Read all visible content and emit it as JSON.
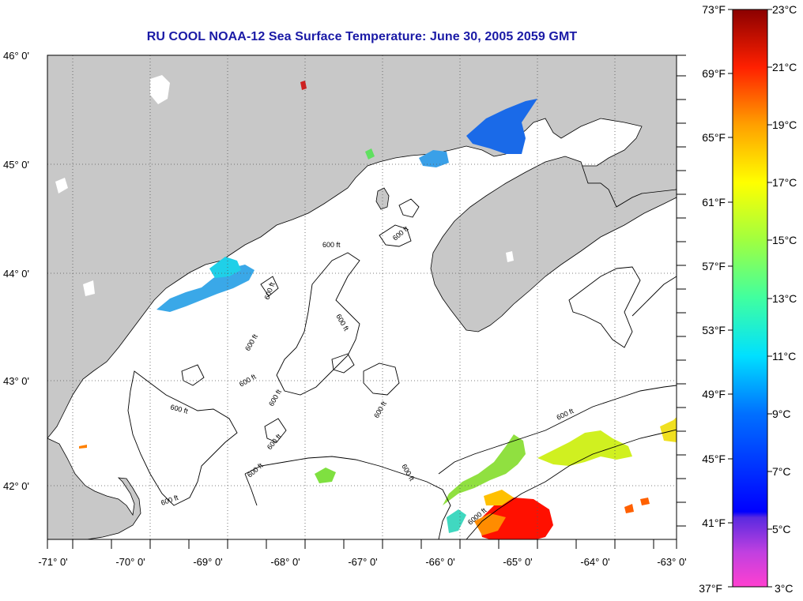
{
  "title": "RU COOL  NOAA-12  Sea Surface Temperature:  June 30, 2005 2059 GMT",
  "lat_labels": [
    "46° 0'",
    "45° 0'",
    "44° 0'",
    "43° 0'",
    "42° 0'"
  ],
  "lon_labels": [
    "-71° 0'",
    "-70° 0'",
    "-69° 0'",
    "-68° 0'",
    "-67° 0'",
    "-66° 0'",
    "-65° 0'",
    "-64° 0'",
    "-63° 0'"
  ],
  "colorbar": {
    "fahrenheit": [
      "73°F",
      "69°F",
      "65°F",
      "61°F",
      "57°F",
      "53°F",
      "49°F",
      "45°F",
      "41°F",
      "37°F"
    ],
    "celsius": [
      "23°C",
      "21°C",
      "19°C",
      "17°C",
      "15°C",
      "13°C",
      "11°C",
      "9°C",
      "7°C",
      "5°C",
      "3°C"
    ],
    "colors": [
      "#8b0000",
      "#ff0000",
      "#ff8c00",
      "#ffff00",
      "#7fff00",
      "#00ffff",
      "#0080ff",
      "#0000ff",
      "#8a2be2",
      "#ff00ff"
    ]
  },
  "contour_labels": [
    "600 ft",
    "600 ft",
    "600 ft",
    "600 ft",
    "600 ft",
    "600 ft",
    "600 ft",
    "600 ft",
    "600 ft",
    "600 ft",
    "600 ft",
    "600 ft",
    "600 ft",
    "600 ft",
    "6000 ft"
  ],
  "colors": {
    "land": "#c8c8c8",
    "water": "#ffffff",
    "title": "#1a1aa6"
  }
}
